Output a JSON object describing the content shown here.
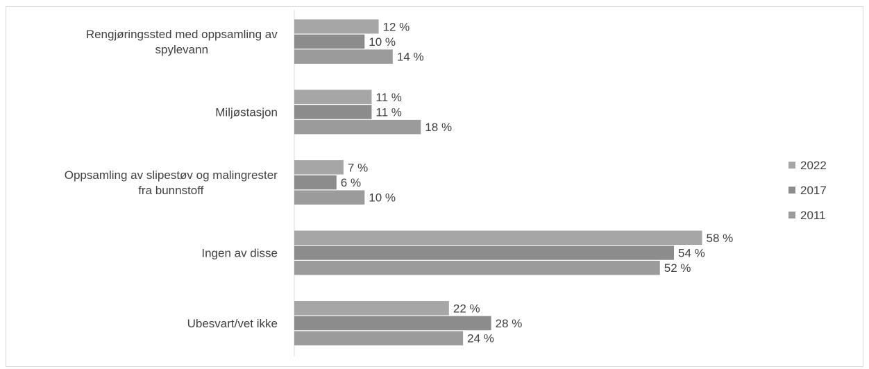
{
  "chart_data": {
    "type": "bar",
    "orientation": "horizontal",
    "categories": [
      "Rengjøringssted med oppsamling av spylevann",
      "Miljøstasjon",
      "Oppsamling av slipestøv og malingrester fra bunnstoff",
      "Ingen av disse",
      "Ubesvart/vet ikke"
    ],
    "category_lines": [
      [
        "Rengjøringssted med oppsamling av",
        "spylevann"
      ],
      [
        "Miljøstasjon"
      ],
      [
        "Oppsamling av slipestøv og malingrester",
        "fra bunnstoff"
      ],
      [
        "Ingen av disse"
      ],
      [
        "Ubesvart/vet ikke"
      ]
    ],
    "series": [
      {
        "name": "2022",
        "values": [
          12,
          11,
          7,
          58,
          22
        ],
        "color": "#a6a6a6"
      },
      {
        "name": "2017",
        "values": [
          10,
          11,
          6,
          54,
          28
        ],
        "color": "#8c8c8c"
      },
      {
        "name": "2011",
        "values": [
          14,
          18,
          10,
          52,
          24
        ],
        "color": "#9b9b9b"
      }
    ],
    "value_suffix": " %",
    "xlim": [
      0,
      80
    ],
    "grid": false,
    "legend_position": "right",
    "axis_color": "#d9d9d9",
    "text_color": "#404040"
  }
}
